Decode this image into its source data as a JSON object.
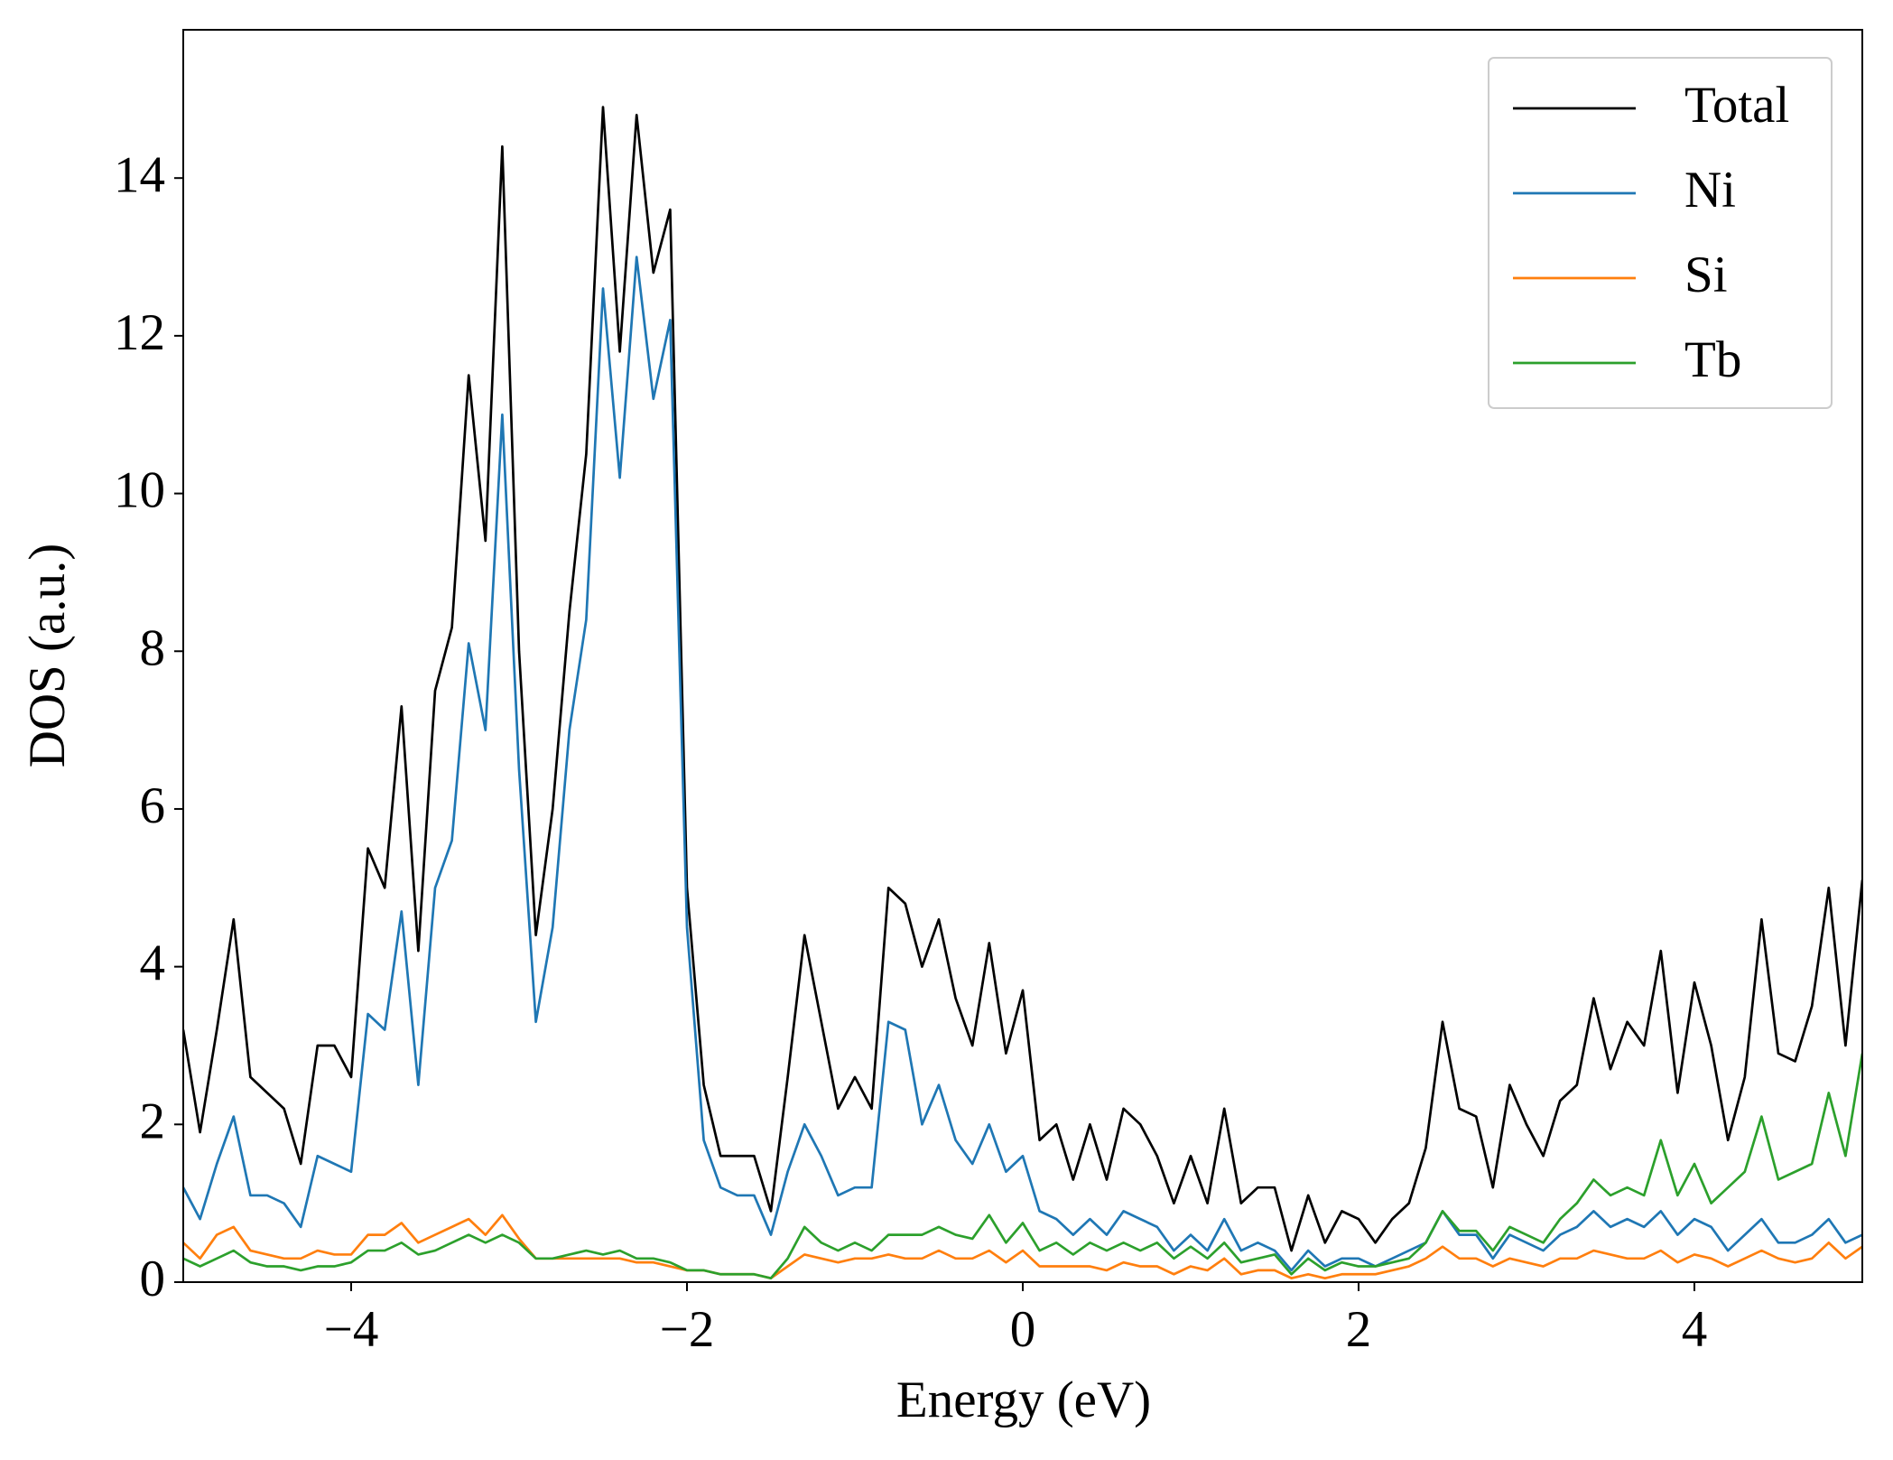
{
  "chart_data": {
    "type": "line",
    "xlabel": "Energy (eV)",
    "ylabel": "DOS (a.u.)",
    "x": [
      -5.0,
      -4.9,
      -4.8,
      -4.7,
      -4.6,
      -4.5,
      -4.4,
      -4.3,
      -4.2,
      -4.1,
      -4.0,
      -3.9,
      -3.8,
      -3.7,
      -3.6,
      -3.5,
      -3.4,
      -3.3,
      -3.2,
      -3.1,
      -3.0,
      -2.9,
      -2.8,
      -2.7,
      -2.6,
      -2.5,
      -2.4,
      -2.3,
      -2.2,
      -2.1,
      -2.0,
      -1.9,
      -1.8,
      -1.7,
      -1.6,
      -1.5,
      -1.4,
      -1.3,
      -1.2,
      -1.1,
      -1.0,
      -0.9,
      -0.8,
      -0.7,
      -0.6,
      -0.5,
      -0.4,
      -0.3,
      -0.2,
      -0.1,
      0.0,
      0.1,
      0.2,
      0.3,
      0.4,
      0.5,
      0.6,
      0.7,
      0.8,
      0.9,
      1.0,
      1.1,
      1.2,
      1.3,
      1.4,
      1.5,
      1.6,
      1.7,
      1.8,
      1.9,
      2.0,
      2.1,
      2.2,
      2.3,
      2.4,
      2.5,
      2.6,
      2.7,
      2.8,
      2.9,
      3.0,
      3.1,
      3.2,
      3.3,
      3.4,
      3.5,
      3.6,
      3.7,
      3.8,
      3.9,
      4.0,
      4.1,
      4.2,
      4.3,
      4.4,
      4.5,
      4.6,
      4.7,
      4.8,
      4.9,
      5.0
    ],
    "series": [
      {
        "name": "Total",
        "color": "#000000",
        "values": [
          3.2,
          1.9,
          3.2,
          4.6,
          2.6,
          2.4,
          2.2,
          1.5,
          3.0,
          3.0,
          2.6,
          5.5,
          5.0,
          7.3,
          4.2,
          7.5,
          8.3,
          11.5,
          9.4,
          14.4,
          8.0,
          4.4,
          6.0,
          8.5,
          10.5,
          14.9,
          11.8,
          14.8,
          12.8,
          13.6,
          5.0,
          2.5,
          1.6,
          1.6,
          1.6,
          0.9,
          2.6,
          4.4,
          3.3,
          2.2,
          2.6,
          2.2,
          5.0,
          4.8,
          4.0,
          4.6,
          3.6,
          3.0,
          4.3,
          2.9,
          3.7,
          1.8,
          2.0,
          1.3,
          2.0,
          1.3,
          2.2,
          2.0,
          1.6,
          1.0,
          1.6,
          1.0,
          2.2,
          1.0,
          1.2,
          1.2,
          0.4,
          1.1,
          0.5,
          0.9,
          0.8,
          0.5,
          0.8,
          1.0,
          1.7,
          3.3,
          2.2,
          2.1,
          1.2,
          2.5,
          2.0,
          1.6,
          2.3,
          2.5,
          3.6,
          2.7,
          3.3,
          3.0,
          4.2,
          2.4,
          3.8,
          3.0,
          1.8,
          2.6,
          4.6,
          2.9,
          2.8,
          3.5,
          5.0,
          3.0,
          5.1
        ]
      },
      {
        "name": "Ni",
        "color": "#1f77b4",
        "values": [
          1.2,
          0.8,
          1.5,
          2.1,
          1.1,
          1.1,
          1.0,
          0.7,
          1.6,
          1.5,
          1.4,
          3.4,
          3.2,
          4.7,
          2.5,
          5.0,
          5.6,
          8.1,
          7.0,
          11.0,
          6.5,
          3.3,
          4.5,
          7.0,
          8.4,
          12.6,
          10.2,
          13.0,
          11.2,
          12.2,
          4.5,
          1.8,
          1.2,
          1.1,
          1.1,
          0.6,
          1.4,
          2.0,
          1.6,
          1.1,
          1.2,
          1.2,
          3.3,
          3.2,
          2.0,
          2.5,
          1.8,
          1.5,
          2.0,
          1.4,
          1.6,
          0.9,
          0.8,
          0.6,
          0.8,
          0.6,
          0.9,
          0.8,
          0.7,
          0.4,
          0.6,
          0.4,
          0.8,
          0.4,
          0.5,
          0.4,
          0.15,
          0.4,
          0.2,
          0.3,
          0.3,
          0.2,
          0.3,
          0.4,
          0.5,
          0.9,
          0.6,
          0.6,
          0.3,
          0.6,
          0.5,
          0.4,
          0.6,
          0.7,
          0.9,
          0.7,
          0.8,
          0.7,
          0.9,
          0.6,
          0.8,
          0.7,
          0.4,
          0.6,
          0.8,
          0.5,
          0.5,
          0.6,
          0.8,
          0.5,
          0.6
        ]
      },
      {
        "name": "Si",
        "color": "#ff7f0e",
        "values": [
          0.5,
          0.3,
          0.6,
          0.7,
          0.4,
          0.35,
          0.3,
          0.3,
          0.4,
          0.35,
          0.35,
          0.6,
          0.6,
          0.75,
          0.5,
          0.6,
          0.7,
          0.8,
          0.6,
          0.85,
          0.55,
          0.3,
          0.3,
          0.3,
          0.3,
          0.3,
          0.3,
          0.25,
          0.25,
          0.2,
          0.15,
          0.15,
          0.1,
          0.1,
          0.1,
          0.05,
          0.2,
          0.35,
          0.3,
          0.25,
          0.3,
          0.3,
          0.35,
          0.3,
          0.3,
          0.4,
          0.3,
          0.3,
          0.4,
          0.25,
          0.4,
          0.2,
          0.2,
          0.2,
          0.2,
          0.15,
          0.25,
          0.2,
          0.2,
          0.1,
          0.2,
          0.15,
          0.3,
          0.1,
          0.15,
          0.15,
          0.05,
          0.1,
          0.05,
          0.1,
          0.1,
          0.1,
          0.15,
          0.2,
          0.3,
          0.45,
          0.3,
          0.3,
          0.2,
          0.3,
          0.25,
          0.2,
          0.3,
          0.3,
          0.4,
          0.35,
          0.3,
          0.3,
          0.4,
          0.25,
          0.35,
          0.3,
          0.2,
          0.3,
          0.4,
          0.3,
          0.25,
          0.3,
          0.5,
          0.3,
          0.45
        ]
      },
      {
        "name": "Tb",
        "color": "#2ca02c",
        "values": [
          0.3,
          0.2,
          0.3,
          0.4,
          0.25,
          0.2,
          0.2,
          0.15,
          0.2,
          0.2,
          0.25,
          0.4,
          0.4,
          0.5,
          0.35,
          0.4,
          0.5,
          0.6,
          0.5,
          0.6,
          0.5,
          0.3,
          0.3,
          0.35,
          0.4,
          0.35,
          0.4,
          0.3,
          0.3,
          0.25,
          0.15,
          0.15,
          0.1,
          0.1,
          0.1,
          0.05,
          0.3,
          0.7,
          0.5,
          0.4,
          0.5,
          0.4,
          0.6,
          0.6,
          0.6,
          0.7,
          0.6,
          0.55,
          0.85,
          0.5,
          0.75,
          0.4,
          0.5,
          0.35,
          0.5,
          0.4,
          0.5,
          0.4,
          0.5,
          0.3,
          0.45,
          0.3,
          0.5,
          0.25,
          0.3,
          0.35,
          0.1,
          0.3,
          0.15,
          0.25,
          0.2,
          0.2,
          0.25,
          0.3,
          0.5,
          0.9,
          0.65,
          0.65,
          0.4,
          0.7,
          0.6,
          0.5,
          0.8,
          1.0,
          1.3,
          1.1,
          1.2,
          1.1,
          1.8,
          1.1,
          1.5,
          1.0,
          1.2,
          1.4,
          2.1,
          1.3,
          1.4,
          1.5,
          2.4,
          1.6,
          2.9
        ]
      }
    ],
    "xlim": [
      -5,
      5
    ],
    "ylim": [
      0,
      15.88
    ],
    "xticks": [
      {
        "value": -4,
        "label": "−4"
      },
      {
        "value": -2,
        "label": "−2"
      },
      0,
      2,
      4
    ],
    "yticks": [
      0,
      2,
      4,
      6,
      8,
      10,
      12,
      14
    ],
    "legend": "upper right",
    "grid": false
  }
}
